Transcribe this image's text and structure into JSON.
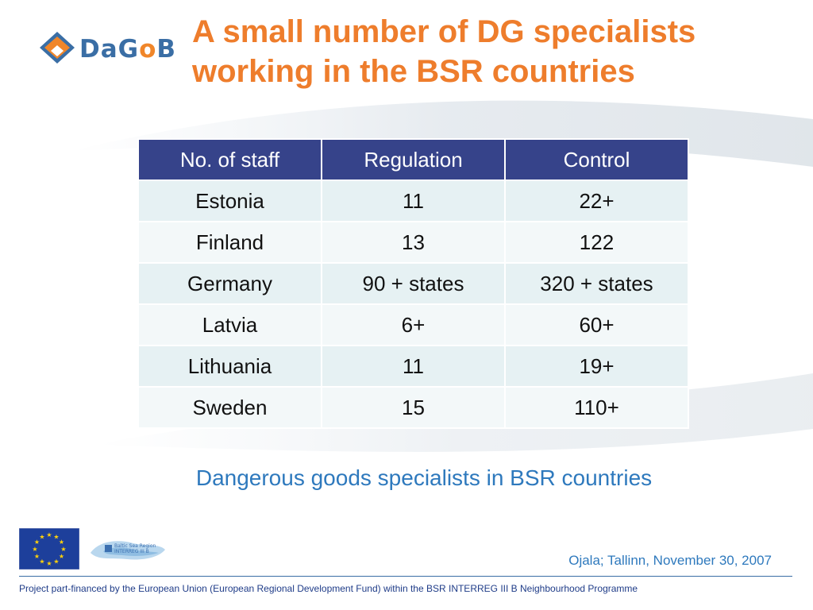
{
  "logo": {
    "text_parts": [
      "Da",
      "G",
      "o",
      "B"
    ],
    "brand_blue": "#3a6ea5",
    "brand_orange": "#f0862a"
  },
  "title": {
    "line1": "A small number of DG specialists",
    "line2": "working in the BSR countries",
    "color": "#ee7d2c"
  },
  "table": {
    "headers": [
      "No. of staff",
      "Regulation",
      "Control"
    ],
    "rows": [
      [
        "Estonia",
        "11",
        "22+"
      ],
      [
        "Finland",
        "13",
        "122"
      ],
      [
        "Germany",
        "90 + states",
        "320 + states"
      ],
      [
        "Latvia",
        "6+",
        "60+"
      ],
      [
        "Lithuania",
        "11",
        "19+"
      ],
      [
        "Sweden",
        "15",
        "110+"
      ]
    ],
    "header_color": "#36438a"
  },
  "caption": "Dangerous goods specialists in BSR countries",
  "bsr_logo": {
    "line1": "Baltic Sea Region",
    "line2": "INTERREG III B"
  },
  "date_line": "Ojala; Tallinn, November 30, 2007",
  "footer": "Project part-financed by the European Union (European Regional Development Fund) within the BSR INTERREG III B Neighbourhood Programme",
  "icons": [
    "dagob-logo-icon",
    "eu-flag-icon",
    "bsr-interreg-logo-icon"
  ]
}
